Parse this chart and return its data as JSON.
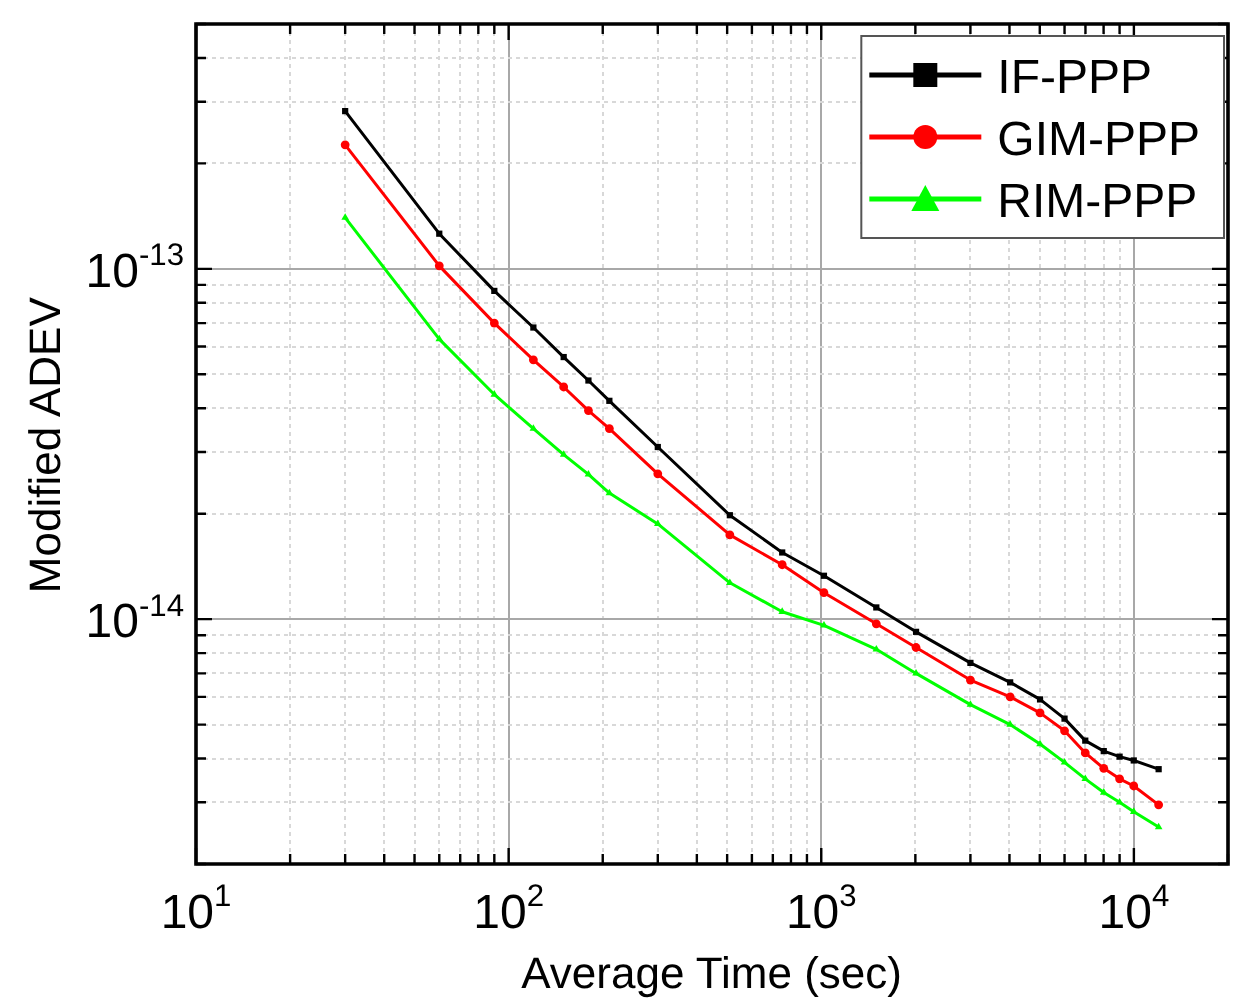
{
  "chart_data": {
    "type": "line",
    "xlabel": "Average Time (sec)",
    "ylabel": "Modified ADEV",
    "log": "xy",
    "grid": true,
    "legend": "top right",
    "xlim": [
      10,
      20000
    ],
    "ylim": [
      2e-15,
      5e-13
    ],
    "xticks": [
      {
        "value": 10,
        "label": "10$^{1}$"
      },
      {
        "value": 20,
        "label": null
      },
      {
        "value": 30,
        "label": null
      },
      {
        "value": 40,
        "label": null
      },
      {
        "value": 50,
        "label": null
      },
      {
        "value": 60,
        "label": null
      },
      {
        "value": 70,
        "label": null
      },
      {
        "value": 80,
        "label": null
      },
      {
        "value": 90,
        "label": null
      },
      {
        "value": 100,
        "label": "10$^{2}$"
      },
      {
        "value": 200,
        "label": null
      },
      {
        "value": 300,
        "label": null
      },
      {
        "value": 400,
        "label": null
      },
      {
        "value": 500,
        "label": null
      },
      {
        "value": 600,
        "label": null
      },
      {
        "value": 700,
        "label": null
      },
      {
        "value": 800,
        "label": null
      },
      {
        "value": 900,
        "label": null
      },
      {
        "value": 1000,
        "label": "10$^{3}$"
      },
      {
        "value": 2000,
        "label": null
      },
      {
        "value": 3000,
        "label": null
      },
      {
        "value": 4000,
        "label": null
      },
      {
        "value": 5000,
        "label": null
      },
      {
        "value": 6000,
        "label": null
      },
      {
        "value": 7000,
        "label": null
      },
      {
        "value": 8000,
        "label": null
      },
      {
        "value": 9000,
        "label": null
      },
      {
        "value": 10000,
        "label": "10$^{4}$"
      },
      {
        "value": 20000,
        "label": null
      }
    ],
    "yticks": [
      {
        "value": 2e-15,
        "label": null
      },
      {
        "value": 3e-15,
        "label": null
      },
      {
        "value": 4e-15,
        "label": null
      },
      {
        "value": 5e-15,
        "label": null
      },
      {
        "value": 6e-15,
        "label": null
      },
      {
        "value": 7e-15,
        "label": null
      },
      {
        "value": 8e-15,
        "label": null
      },
      {
        "value": 9e-15,
        "label": null
      },
      {
        "value": 1e-14,
        "label": "10$^{-14}$"
      },
      {
        "value": 2e-14,
        "label": null
      },
      {
        "value": 3e-14,
        "label": null
      },
      {
        "value": 4e-14,
        "label": null
      },
      {
        "value": 5e-14,
        "label": null
      },
      {
        "value": 6e-14,
        "label": null
      },
      {
        "value": 7e-14,
        "label": null
      },
      {
        "value": 8e-14,
        "label": null
      },
      {
        "value": 9e-14,
        "label": null
      },
      {
        "value": 1e-13,
        "label": "10$^{-13}$"
      },
      {
        "value": 2e-13,
        "label": null
      },
      {
        "value": 3e-13,
        "label": null
      },
      {
        "value": 4e-13,
        "label": null
      },
      {
        "value": 5e-13,
        "label": null
      }
    ],
    "x": [
      30,
      60,
      90,
      120,
      150,
      180,
      210,
      300,
      510,
      750,
      1020,
      1500,
      2010,
      3000,
      4020,
      5010,
      6000,
      6990,
      8010,
      9000,
      9990,
      12000
    ],
    "series": [
      {
        "name": "IF-PPP",
        "color": "#000000",
        "marker": "square",
        "values": [
          2.82e-13,
          1.26e-13,
          8.65e-14,
          6.8e-14,
          5.6e-14,
          4.8e-14,
          4.2e-14,
          3.1e-14,
          1.98e-14,
          1.55e-14,
          1.33e-14,
          1.08e-14,
          9.2e-15,
          7.5e-15,
          6.6e-15,
          5.9e-15,
          5.2e-15,
          4.5e-15,
          4.2e-15,
          4.05e-15,
          3.95e-15,
          3.73e-15
        ]
      },
      {
        "name": "GIM-PPP",
        "color": "#ff0000",
        "marker": "circle",
        "values": [
          2.26e-13,
          1.02e-13,
          7e-14,
          5.5e-14,
          4.6e-14,
          3.94e-14,
          3.5e-14,
          2.6e-14,
          1.74e-14,
          1.43e-14,
          1.19e-14,
          9.7e-15,
          8.3e-15,
          6.7e-15,
          6e-15,
          5.4e-15,
          4.8e-15,
          4.15e-15,
          3.75e-15,
          3.5e-15,
          3.34e-15,
          2.95e-15
        ]
      },
      {
        "name": "RIM-PPP",
        "color": "#00ff00",
        "marker": "triangle",
        "values": [
          1.4e-13,
          6.3e-14,
          4.38e-14,
          3.5e-14,
          2.95e-14,
          2.59e-14,
          2.29e-14,
          1.87e-14,
          1.27e-14,
          1.05e-14,
          9.6e-15,
          8.2e-15,
          7e-15,
          5.7e-15,
          5e-15,
          4.4e-15,
          3.9e-15,
          3.5e-15,
          3.2e-15,
          3e-15,
          2.82e-15,
          2.55e-15
        ]
      }
    ]
  }
}
